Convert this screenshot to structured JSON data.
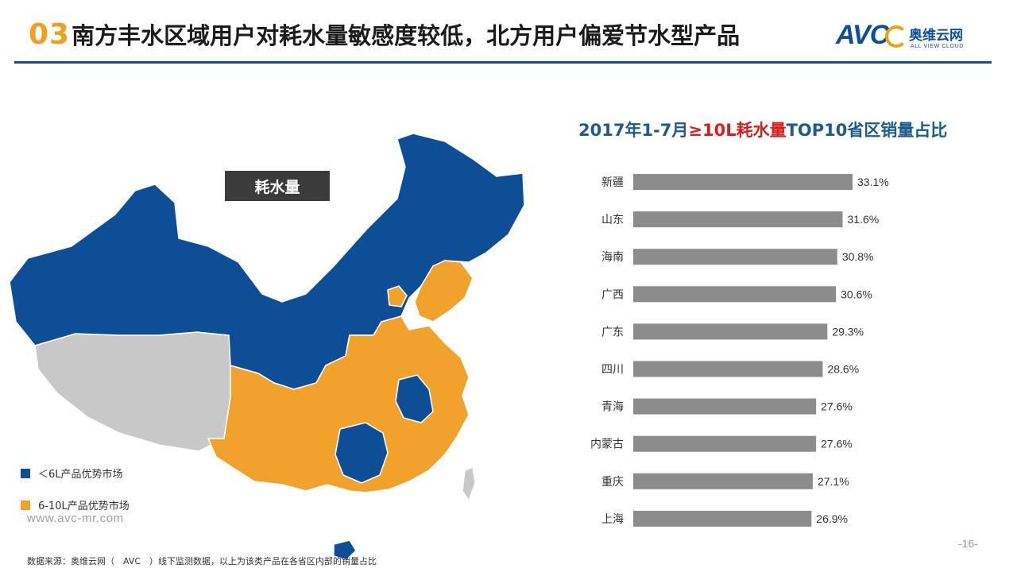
{
  "header": {
    "number": "03",
    "title": "南方丰水区域用户对耗水量敏感度较低，北方用户偏爱节水型产品"
  },
  "logo": {
    "brand": "AVC",
    "name_cn": "奥维云网",
    "name_en": "ALL VIEW CLOUD"
  },
  "map": {
    "tag": "耗水量",
    "legend": [
      {
        "label": "＜6L产品优势市场",
        "color": "#0e4e96"
      },
      {
        "label": "6-10L产品优势市场",
        "color": "#f0a22d"
      }
    ],
    "colors": {
      "blue": "#0e4e96",
      "orange": "#f0a22d",
      "gray": "#c8c8c8"
    }
  },
  "chart_data": {
    "type": "bar",
    "orientation": "horizontal",
    "title_parts": [
      "2017年1-7月",
      "≥10L耗水量",
      "TOP10省区销量占比"
    ],
    "categories": [
      "新疆",
      "山东",
      "海南",
      "广西",
      "广东",
      "四川",
      "青海",
      "内蒙古",
      "重庆",
      "上海"
    ],
    "values": [
      33.1,
      31.6,
      30.8,
      30.6,
      29.3,
      28.6,
      27.6,
      27.6,
      27.1,
      26.9
    ],
    "value_labels": [
      "33.1%",
      "31.6%",
      "30.8%",
      "30.6%",
      "29.3%",
      "28.6%",
      "27.6%",
      "27.6%",
      "27.1%",
      "26.9%"
    ],
    "unit": "%",
    "bar_color": "#8c8c8c",
    "xlim": [
      0,
      34
    ],
    "grid": false,
    "legend": "none"
  },
  "footer": {
    "site": "www.avc-mr.com",
    "source": "数据来源：奥维云网（　AVC　）线下监测数据，以上为该类产品在各省区内部的销量占比",
    "page": "-16-"
  }
}
